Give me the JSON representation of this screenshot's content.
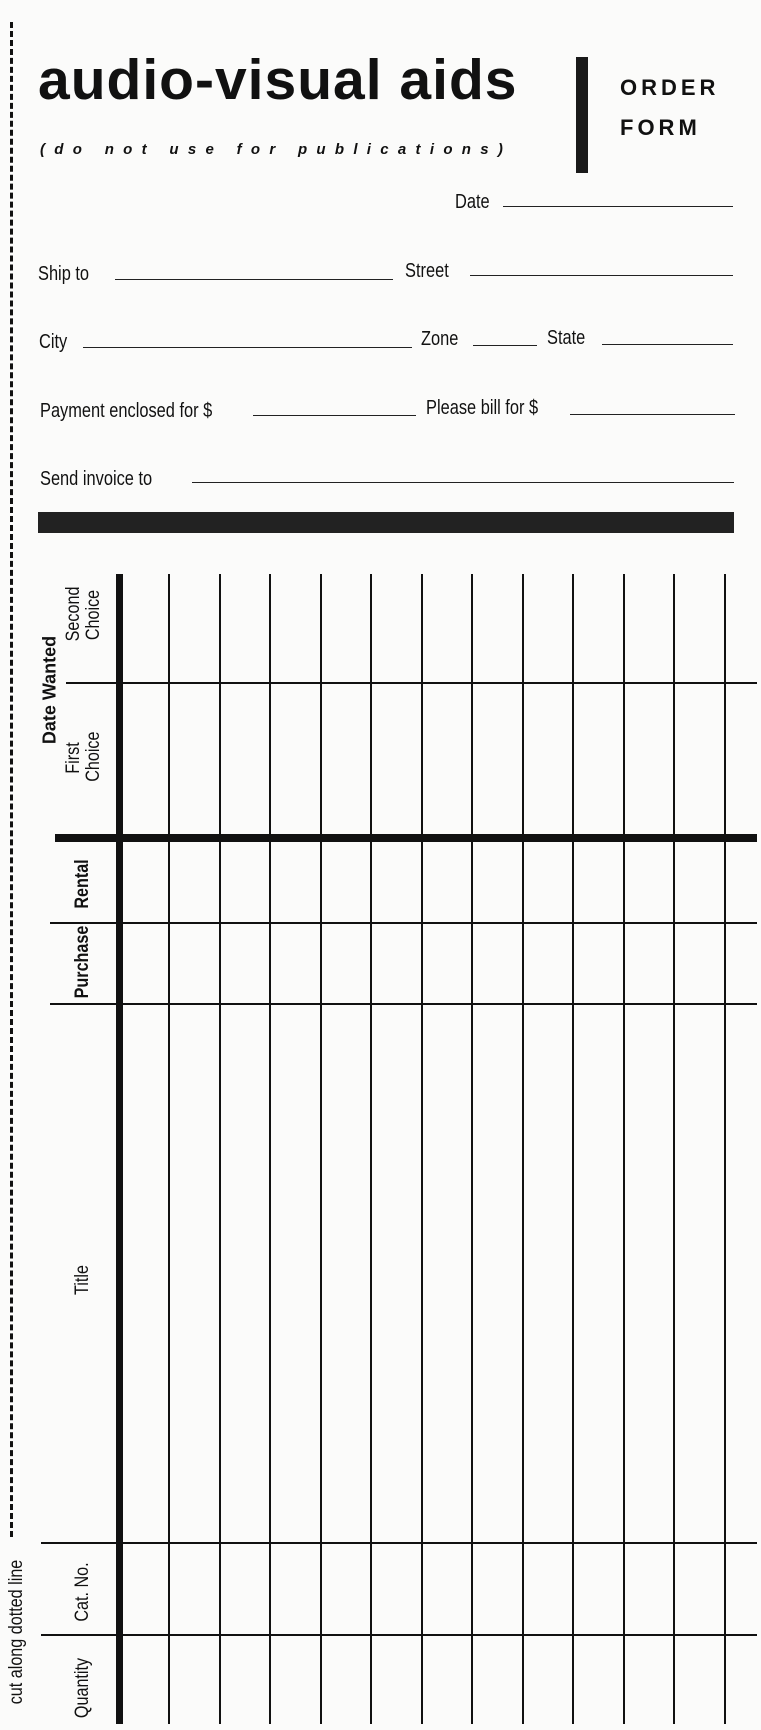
{
  "header": {
    "title": "audio-visual aids",
    "subtitle": "(do not use for publications)",
    "form_type_line1": "ORDER",
    "form_type_line2": "FORM"
  },
  "fields": {
    "date": "Date",
    "ship_to": "Ship to",
    "street": "Street",
    "city": "City",
    "zone": "Zone",
    "state": "State",
    "payment_enclosed": "Payment enclosed for $",
    "please_bill": "Please bill for $",
    "send_invoice": "Send invoice to"
  },
  "table": {
    "date_wanted": "Date Wanted",
    "second_choice": "Second Choice",
    "first_choice": "First Choice",
    "rental": "Rental",
    "purchase": "Purchase",
    "title": "Title",
    "cat_no": "Cat. No.",
    "quantity": "Quantity",
    "entry_columns": 12
  },
  "cut_instruction": "cut along dotted line"
}
